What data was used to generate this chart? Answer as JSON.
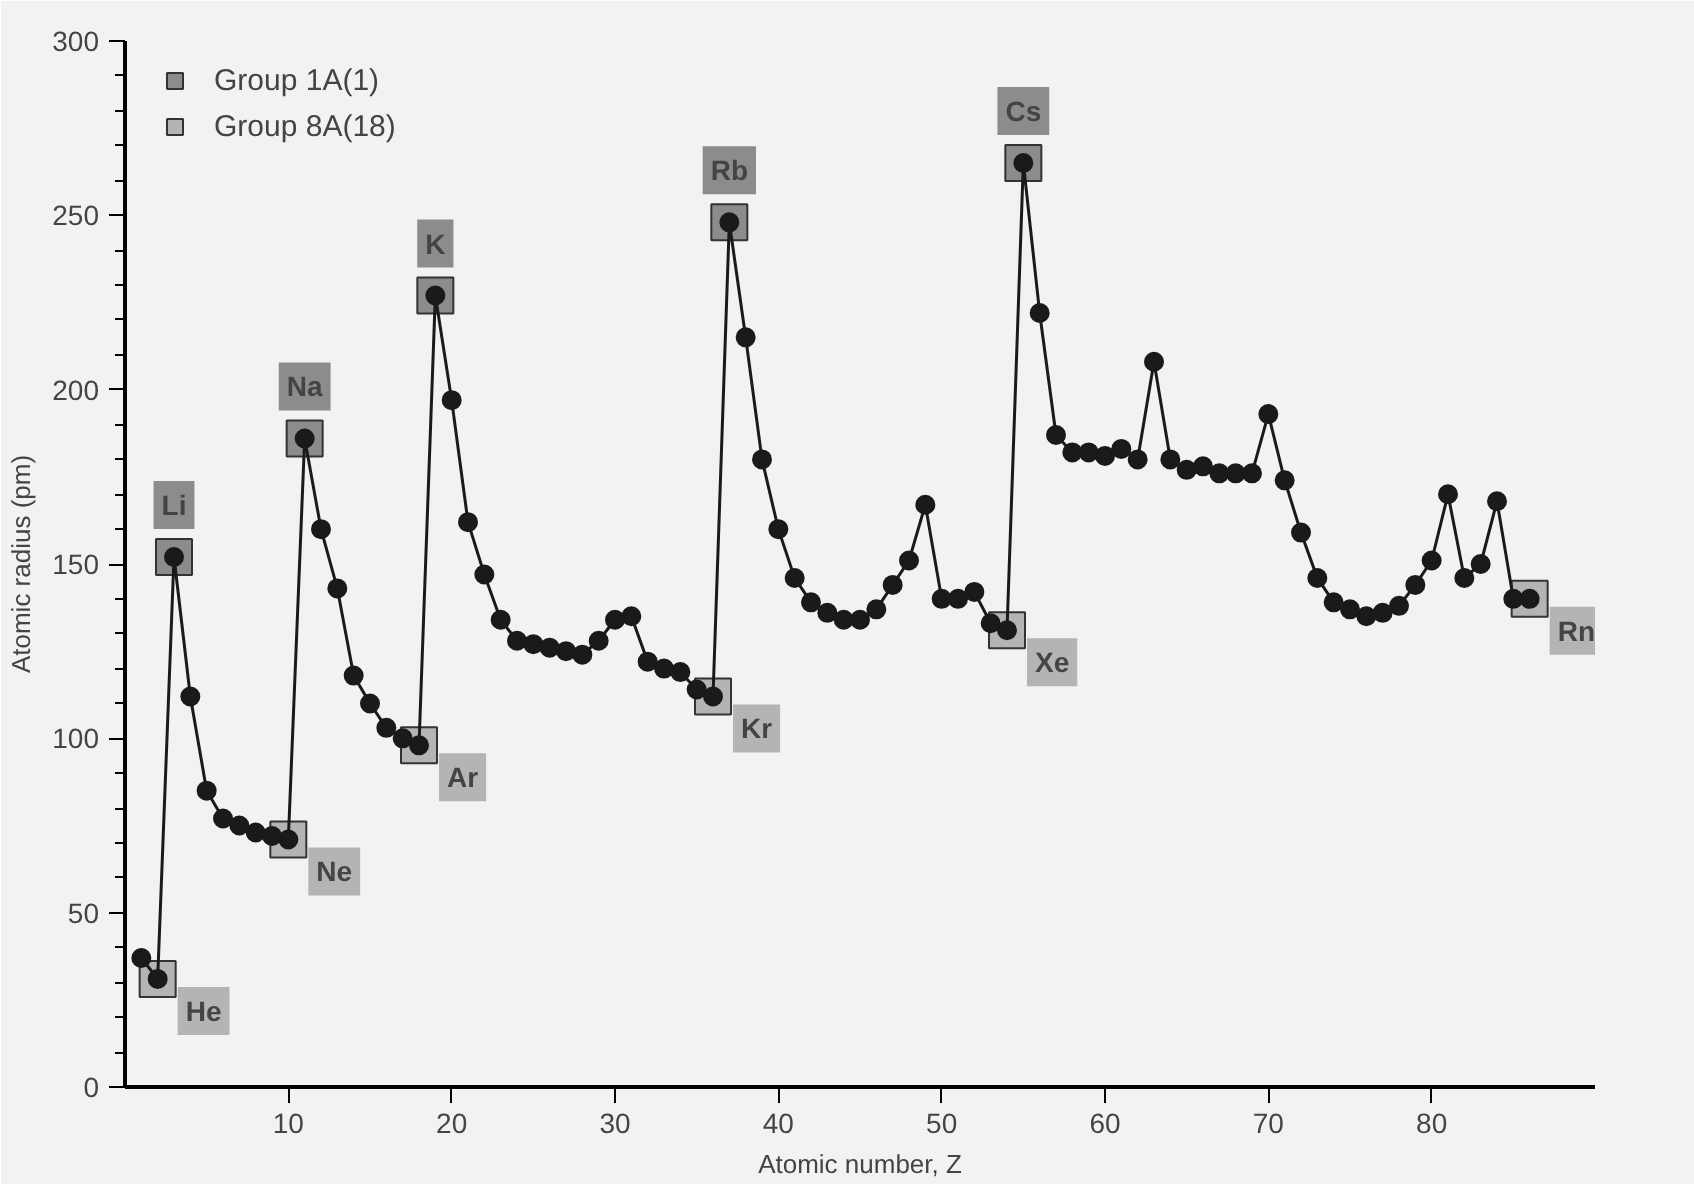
{
  "chart_data": {
    "type": "line",
    "xlabel": "Atomic number, Z",
    "ylabel": "Atomic radius (pm)",
    "x": [
      1,
      2,
      3,
      4,
      5,
      6,
      7,
      8,
      9,
      10,
      11,
      12,
      13,
      14,
      15,
      16,
      17,
      18,
      19,
      20,
      21,
      22,
      23,
      24,
      25,
      26,
      27,
      28,
      29,
      30,
      31,
      32,
      33,
      34,
      35,
      36,
      37,
      38,
      39,
      40,
      41,
      42,
      43,
      44,
      45,
      46,
      47,
      48,
      49,
      50,
      51,
      52,
      53,
      54,
      55,
      56,
      57,
      58,
      59,
      60,
      61,
      62,
      63,
      64,
      65,
      66,
      67,
      68,
      69,
      70,
      71,
      72,
      73,
      74,
      75,
      76,
      77,
      78,
      79,
      80,
      81,
      82,
      83,
      84,
      85,
      86
    ],
    "series": [
      {
        "color": "#1a1a1a",
        "values": [
          37,
          31,
          152,
          112,
          85,
          77,
          75,
          73,
          72,
          71,
          186,
          160,
          143,
          118,
          110,
          103,
          100,
          98,
          227,
          197,
          162,
          147,
          134,
          128,
          127,
          126,
          125,
          124,
          128,
          134,
          135,
          122,
          120,
          119,
          114,
          112,
          248,
          215,
          180,
          160,
          146,
          139,
          136,
          134,
          134,
          137,
          144,
          151,
          167,
          140,
          140,
          142,
          133,
          131,
          265,
          222,
          187,
          182,
          182,
          181,
          183,
          180,
          208,
          180,
          177,
          178,
          176,
          176,
          176,
          193,
          174,
          159,
          146,
          139,
          137,
          135,
          136,
          138,
          144,
          151,
          170,
          146,
          150,
          168,
          140,
          140
        ]
      },
      {
        "type": "scatter",
        "name": "Group 1A(1)",
        "color": "#8c8c8c",
        "marker": "square",
        "x": [
          3,
          11,
          19,
          37,
          55
        ],
        "values": [
          152,
          186,
          227,
          248,
          265
        ]
      },
      {
        "type": "scatter",
        "name": "Group 8A(18)",
        "color": "#b4b4b4",
        "marker": "square",
        "x": [
          2,
          10,
          18,
          36,
          54,
          86
        ],
        "values": [
          31,
          71,
          98,
          112,
          131,
          140
        ]
      }
    ],
    "marker": "circle",
    "line_style": "solid",
    "grid": false,
    "legend": "top left",
    "xlim": [
      0,
      90
    ],
    "xticks": [
      10,
      20,
      30,
      40,
      50,
      60,
      70,
      80
    ],
    "ylim": [
      0,
      300
    ],
    "yticks": [
      0,
      50,
      100,
      150,
      200,
      250,
      300
    ],
    "annotations": [
      {
        "text": "Li",
        "x": 3,
        "y": 152
      },
      {
        "text": "Na",
        "x": 11,
        "y": 186
      },
      {
        "text": "K",
        "x": 19,
        "y": 227
      },
      {
        "text": "Rb",
        "x": 37,
        "y": 248
      },
      {
        "text": "Cs",
        "x": 55,
        "y": 265
      },
      {
        "text": "He",
        "x": 2,
        "y": 31
      },
      {
        "text": "Ne",
        "x": 10,
        "y": 71
      },
      {
        "text": "Ar",
        "x": 18,
        "y": 98
      },
      {
        "text": "Kr",
        "x": 36,
        "y": 112
      },
      {
        "text": "Xe",
        "x": 54,
        "y": 131
      },
      {
        "text": "Rn",
        "x": 86,
        "y": 140
      }
    ]
  }
}
